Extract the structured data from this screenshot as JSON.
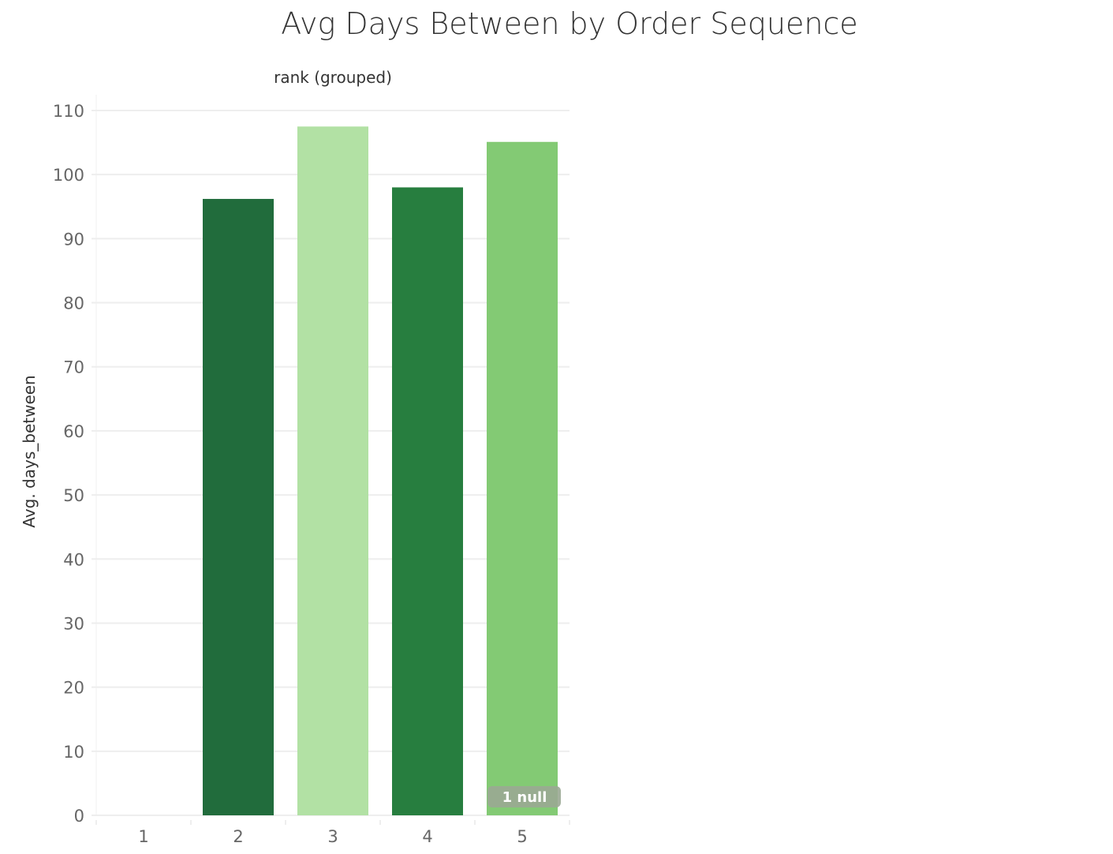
{
  "chart_data": {
    "type": "bar",
    "title": "Avg Days Between by Order Sequence",
    "column_header": "rank (grouped)",
    "xlabel": "",
    "ylabel": "Avg. days_between",
    "categories": [
      "1",
      "2",
      "3",
      "4",
      "5"
    ],
    "values": [
      null,
      96.2,
      107.5,
      98.0,
      105.1
    ],
    "colors": [
      null,
      "#216c3c",
      "#b2e1a4",
      "#277e3f",
      "#83ca74"
    ],
    "ylim": [
      0,
      110
    ],
    "yticks": [
      "0",
      "10",
      "20",
      "30",
      "40",
      "50",
      "60",
      "70",
      "80",
      "90",
      "100",
      "110"
    ],
    "grid": true,
    "null_indicator": "1 null"
  }
}
